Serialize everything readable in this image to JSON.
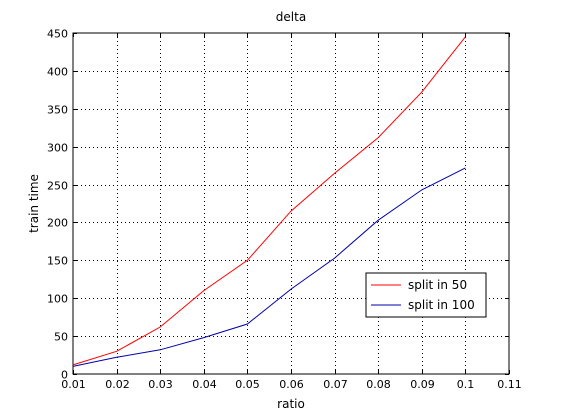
{
  "chart_data": {
    "type": "line",
    "title": "delta",
    "xlabel": "ratio",
    "ylabel": "train time",
    "xlim": [
      0.01,
      0.11
    ],
    "ylim": [
      0,
      450
    ],
    "xticks": [
      "0.01",
      "0.02",
      "0.03",
      "0.04",
      "0.05",
      "0.06",
      "0.07",
      "0.08",
      "0.09",
      "0.1",
      "0.11"
    ],
    "yticks": [
      "0",
      "50",
      "100",
      "150",
      "200",
      "250",
      "300",
      "350",
      "400",
      "450"
    ],
    "grid": true,
    "legend_position": "lower-right",
    "x": [
      0.01,
      0.02,
      0.03,
      0.04,
      0.05,
      0.06,
      0.07,
      0.08,
      0.09,
      0.1
    ],
    "series": [
      {
        "name": "split in 50",
        "color": "#ff0000",
        "values": [
          12,
          30,
          62,
          110,
          150,
          215,
          265,
          312,
          372,
          445
        ]
      },
      {
        "name": "split in 100",
        "color": "#0000aa",
        "values": [
          10,
          22,
          32,
          48,
          66,
          112,
          153,
          203,
          243,
          272
        ]
      }
    ]
  }
}
